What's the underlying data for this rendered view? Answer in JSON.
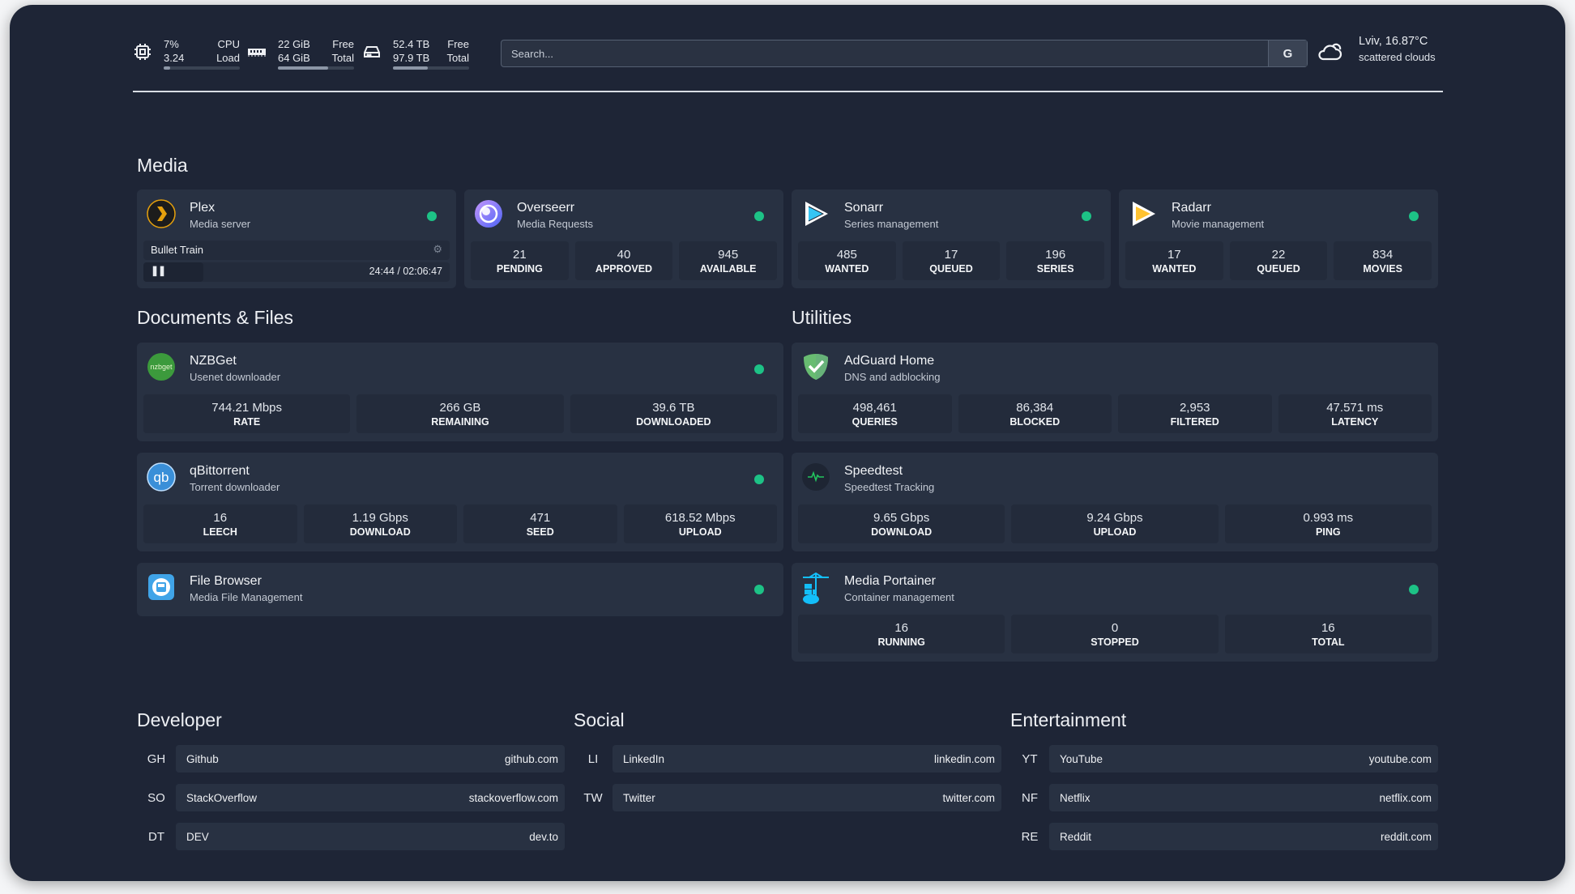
{
  "header": {
    "cpu": {
      "icon": "cpu-icon",
      "value1": "7%",
      "value2": "3.24",
      "label1": "CPU",
      "label2": "Load",
      "fill": 0.07
    },
    "memory": {
      "icon": "memory-icon",
      "value1": "22 GiB",
      "value2": "64 GiB",
      "label1": "Free",
      "label2": "Total",
      "fill": 0.66
    },
    "disk": {
      "icon": "hard-drive-icon",
      "value1": "52.4 TB",
      "value2": "97.9 TB",
      "label1": "Free",
      "label2": "Total",
      "fill": 0.46
    },
    "search": {
      "placeholder": "Search...",
      "button": "G"
    },
    "weather": {
      "icon": "cloud-icon",
      "location": "Lviv, 16.87°C",
      "description": "scattered clouds"
    }
  },
  "colors": {
    "background": "#1e2536",
    "card": "#283142",
    "status_online": "#1dc286"
  },
  "sections": {
    "media": {
      "title": "Media",
      "cards": [
        {
          "name": "Plex",
          "description": "Media server",
          "icon": "plex-icon",
          "status": "online",
          "now_playing": {
            "title": "Bullet Train",
            "time": "24:44 / 02:06:47",
            "progress": 0.195,
            "state": "paused"
          }
        },
        {
          "name": "Overseerr",
          "description": "Media Requests",
          "icon": "overseerr-icon",
          "status": "online",
          "stats": [
            {
              "value": "21",
              "label": "PENDING"
            },
            {
              "value": "40",
              "label": "APPROVED"
            },
            {
              "value": "945",
              "label": "AVAILABLE"
            }
          ]
        },
        {
          "name": "Sonarr",
          "description": "Series management",
          "icon": "sonarr-icon",
          "status": "online",
          "stats": [
            {
              "value": "485",
              "label": "WANTED"
            },
            {
              "value": "17",
              "label": "QUEUED"
            },
            {
              "value": "196",
              "label": "SERIES"
            }
          ]
        },
        {
          "name": "Radarr",
          "description": "Movie management",
          "icon": "radarr-icon",
          "status": "online",
          "stats": [
            {
              "value": "17",
              "label": "WANTED"
            },
            {
              "value": "22",
              "label": "QUEUED"
            },
            {
              "value": "834",
              "label": "MOVIES"
            }
          ]
        }
      ]
    },
    "documents": {
      "title": "Documents & Files",
      "cards": [
        {
          "name": "NZBGet",
          "description": "Usenet downloader",
          "icon": "nzbget-icon",
          "logo_text": "nzbget",
          "status": "online",
          "stats": [
            {
              "value": "744.21 Mbps",
              "label": "RATE"
            },
            {
              "value": "266 GB",
              "label": "REMAINING"
            },
            {
              "value": "39.6 TB",
              "label": "DOWNLOADED"
            }
          ]
        },
        {
          "name": "qBittorrent",
          "description": "Torrent downloader",
          "icon": "qbittorrent-icon",
          "logo_text": "qb",
          "status": "online",
          "stats": [
            {
              "value": "16",
              "label": "LEECH"
            },
            {
              "value": "1.19 Gbps",
              "label": "DOWNLOAD"
            },
            {
              "value": "471",
              "label": "SEED"
            },
            {
              "value": "618.52 Mbps",
              "label": "UPLOAD"
            }
          ]
        },
        {
          "name": "File Browser",
          "description": "Media File Management",
          "icon": "file-browser-icon",
          "status": "online"
        }
      ]
    },
    "utilities": {
      "title": "Utilities",
      "cards": [
        {
          "name": "AdGuard Home",
          "description": "DNS and adblocking",
          "icon": "adguard-icon",
          "stats": [
            {
              "value": "498,461",
              "label": "QUERIES"
            },
            {
              "value": "86,384",
              "label": "BLOCKED"
            },
            {
              "value": "2,953",
              "label": "FILTERED"
            },
            {
              "value": "47.571 ms",
              "label": "LATENCY"
            }
          ]
        },
        {
          "name": "Speedtest",
          "description": "Speedtest Tracking",
          "icon": "speedtest-icon",
          "stats": [
            {
              "value": "9.65 Gbps",
              "label": "DOWNLOAD"
            },
            {
              "value": "9.24 Gbps",
              "label": "UPLOAD"
            },
            {
              "value": "0.993 ms",
              "label": "PING"
            }
          ]
        },
        {
          "name": "Media Portainer",
          "description": "Container management",
          "icon": "portainer-icon",
          "status": "online",
          "stats": [
            {
              "value": "16",
              "label": "RUNNING"
            },
            {
              "value": "0",
              "label": "STOPPED"
            },
            {
              "value": "16",
              "label": "TOTAL"
            }
          ]
        }
      ]
    }
  },
  "bookmarks": [
    {
      "title": "Developer",
      "items": [
        {
          "abbr": "GH",
          "name": "Github",
          "url": "github.com"
        },
        {
          "abbr": "SO",
          "name": "StackOverflow",
          "url": "stackoverflow.com"
        },
        {
          "abbr": "DT",
          "name": "DEV",
          "url": "dev.to"
        }
      ]
    },
    {
      "title": "Social",
      "items": [
        {
          "abbr": "LI",
          "name": "LinkedIn",
          "url": "linkedin.com"
        },
        {
          "abbr": "TW",
          "name": "Twitter",
          "url": "twitter.com"
        }
      ]
    },
    {
      "title": "Entertainment",
      "items": [
        {
          "abbr": "YT",
          "name": "YouTube",
          "url": "youtube.com"
        },
        {
          "abbr": "NF",
          "name": "Netflix",
          "url": "netflix.com"
        },
        {
          "abbr": "RE",
          "name": "Reddit",
          "url": "reddit.com"
        }
      ]
    }
  ]
}
